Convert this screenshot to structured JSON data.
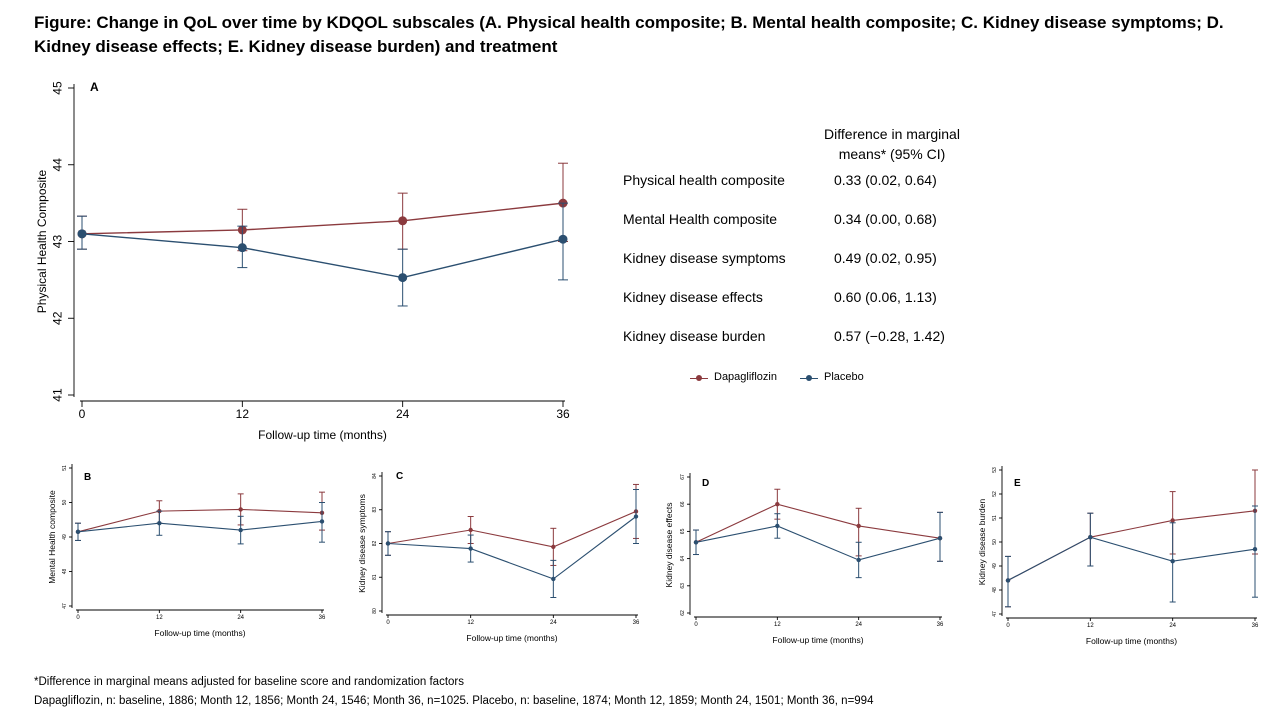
{
  "title": "Figure: Change in QoL over time by KDQOL subscales (A. Physical health composite; B. Mental health composite; C. Kidney disease symptoms; D. Kidney disease effects; E. Kidney disease burden) and treatment",
  "colors": {
    "dapagliflozin": "#8B3A3E",
    "placebo": "#2B4F70"
  },
  "table": {
    "header_line1": "Difference in marginal",
    "header_line2": "means* (95% CI)",
    "rows": [
      {
        "label": "Physical health composite",
        "value": "0.33 (0.02, 0.64)"
      },
      {
        "label": "Mental Health composite",
        "value": "0.34 (0.00, 0.68)"
      },
      {
        "label": "Kidney disease symptoms",
        "value": "0.49 (0.02, 0.95)"
      },
      {
        "label": "Kidney disease effects",
        "value": "0.60 (0.06, 1.13)"
      },
      {
        "label": "Kidney disease burden",
        "value": "0.57 (−0.28, 1.42)"
      }
    ]
  },
  "legend": {
    "dapagliflozin": "Dapagliflozin",
    "placebo": "Placebo"
  },
  "footnote1": "*Difference in marginal means adjusted for baseline score and randomization factors",
  "footnote2": "Dapagliflozin, n: baseline, 1886; Month 12, 1856; Month 24, 1546; Month 36, n=1025.     Placebo, n: baseline, 1874; Month 12, 1859; Month 24, 1501; Month 36, n=994",
  "chart_data": [
    {
      "panel": "A",
      "type": "line",
      "xlabel": "Follow-up time (months)",
      "ylabel": "Physical Health Composite",
      "x": [
        0,
        12,
        24,
        36
      ],
      "xlim": [
        0,
        36
      ],
      "ylim": [
        41,
        45
      ],
      "yticks": [
        41,
        42,
        43,
        44,
        45
      ],
      "series": [
        {
          "name": "Dapagliflozin",
          "values": [
            43.1,
            43.15,
            43.27,
            43.5
          ],
          "lower": [
            42.9,
            42.88,
            42.9,
            43.0
          ],
          "upper": [
            43.33,
            43.42,
            43.63,
            44.02
          ]
        },
        {
          "name": "Placebo",
          "values": [
            43.1,
            42.92,
            42.53,
            43.03
          ],
          "lower": [
            42.9,
            42.66,
            42.16,
            42.5
          ],
          "upper": [
            43.33,
            43.2,
            42.9,
            43.5
          ]
        }
      ]
    },
    {
      "panel": "B",
      "type": "line",
      "xlabel": "Follow-up time (months)",
      "ylabel": "Mental Health composite",
      "x": [
        0,
        12,
        24,
        36
      ],
      "xlim": [
        0,
        36
      ],
      "ylim": [
        47,
        51
      ],
      "yticks": [
        47,
        48,
        49,
        50,
        51
      ],
      "series": [
        {
          "name": "Dapagliflozin",
          "values": [
            49.15,
            49.75,
            49.8,
            49.7
          ],
          "lower": [
            48.9,
            49.4,
            49.35,
            49.2
          ],
          "upper": [
            49.4,
            50.05,
            50.25,
            50.3
          ]
        },
        {
          "name": "Placebo",
          "values": [
            49.15,
            49.4,
            49.2,
            49.45
          ],
          "lower": [
            48.9,
            49.05,
            48.8,
            48.85
          ],
          "upper": [
            49.4,
            49.75,
            49.6,
            50.0
          ]
        }
      ]
    },
    {
      "panel": "C",
      "type": "line",
      "xlabel": "Follow-up time (months)",
      "ylabel": "Kidney disease symptoms",
      "x": [
        0,
        12,
        24,
        36
      ],
      "xlim": [
        0,
        36
      ],
      "ylim": [
        80,
        84
      ],
      "yticks": [
        80,
        81,
        82,
        83,
        84
      ],
      "series": [
        {
          "name": "Dapagliflozin",
          "values": [
            82.0,
            82.4,
            81.9,
            82.95
          ],
          "lower": [
            81.65,
            82.0,
            81.35,
            82.15
          ],
          "upper": [
            82.35,
            82.8,
            82.45,
            83.75
          ]
        },
        {
          "name": "Placebo",
          "values": [
            82.0,
            81.85,
            80.95,
            82.8
          ],
          "lower": [
            81.65,
            81.45,
            80.4,
            82.0
          ],
          "upper": [
            82.35,
            82.25,
            81.5,
            83.6
          ]
        }
      ]
    },
    {
      "panel": "D",
      "type": "line",
      "xlabel": "Follow-up time (months)",
      "ylabel": "Kidney disease effects",
      "x": [
        0,
        12,
        24,
        36
      ],
      "xlim": [
        0,
        36
      ],
      "ylim": [
        62,
        67
      ],
      "yticks": [
        62,
        63,
        64,
        65,
        66,
        67
      ],
      "series": [
        {
          "name": "Dapagliflozin",
          "values": [
            64.6,
            66.0,
            65.2,
            64.75
          ],
          "lower": [
            64.15,
            65.45,
            64.1,
            63.9
          ],
          "upper": [
            65.05,
            66.55,
            65.85,
            65.7
          ]
        },
        {
          "name": "Placebo",
          "values": [
            64.6,
            65.2,
            63.95,
            64.75
          ],
          "lower": [
            64.15,
            64.75,
            63.3,
            63.9
          ],
          "upper": [
            65.05,
            65.65,
            64.6,
            65.7
          ]
        }
      ]
    },
    {
      "panel": "E",
      "type": "line",
      "xlabel": "Follow-up time (months)",
      "ylabel": "Kidney disease burden",
      "x": [
        0,
        12,
        24,
        36
      ],
      "xlim": [
        0,
        36
      ],
      "ylim": [
        47,
        53
      ],
      "yticks": [
        47,
        48,
        49,
        50,
        51,
        52,
        53
      ],
      "series": [
        {
          "name": "Dapagliflozin",
          "values": [
            48.4,
            50.2,
            50.9,
            51.3
          ],
          "lower": [
            47.3,
            49.0,
            49.5,
            49.5
          ],
          "upper": [
            49.4,
            51.2,
            52.1,
            53.0
          ]
        },
        {
          "name": "Placebo",
          "values": [
            48.4,
            50.2,
            49.2,
            49.7
          ],
          "lower": [
            47.3,
            49.0,
            47.5,
            47.7
          ],
          "upper": [
            49.4,
            51.2,
            50.8,
            51.5
          ]
        }
      ]
    }
  ]
}
